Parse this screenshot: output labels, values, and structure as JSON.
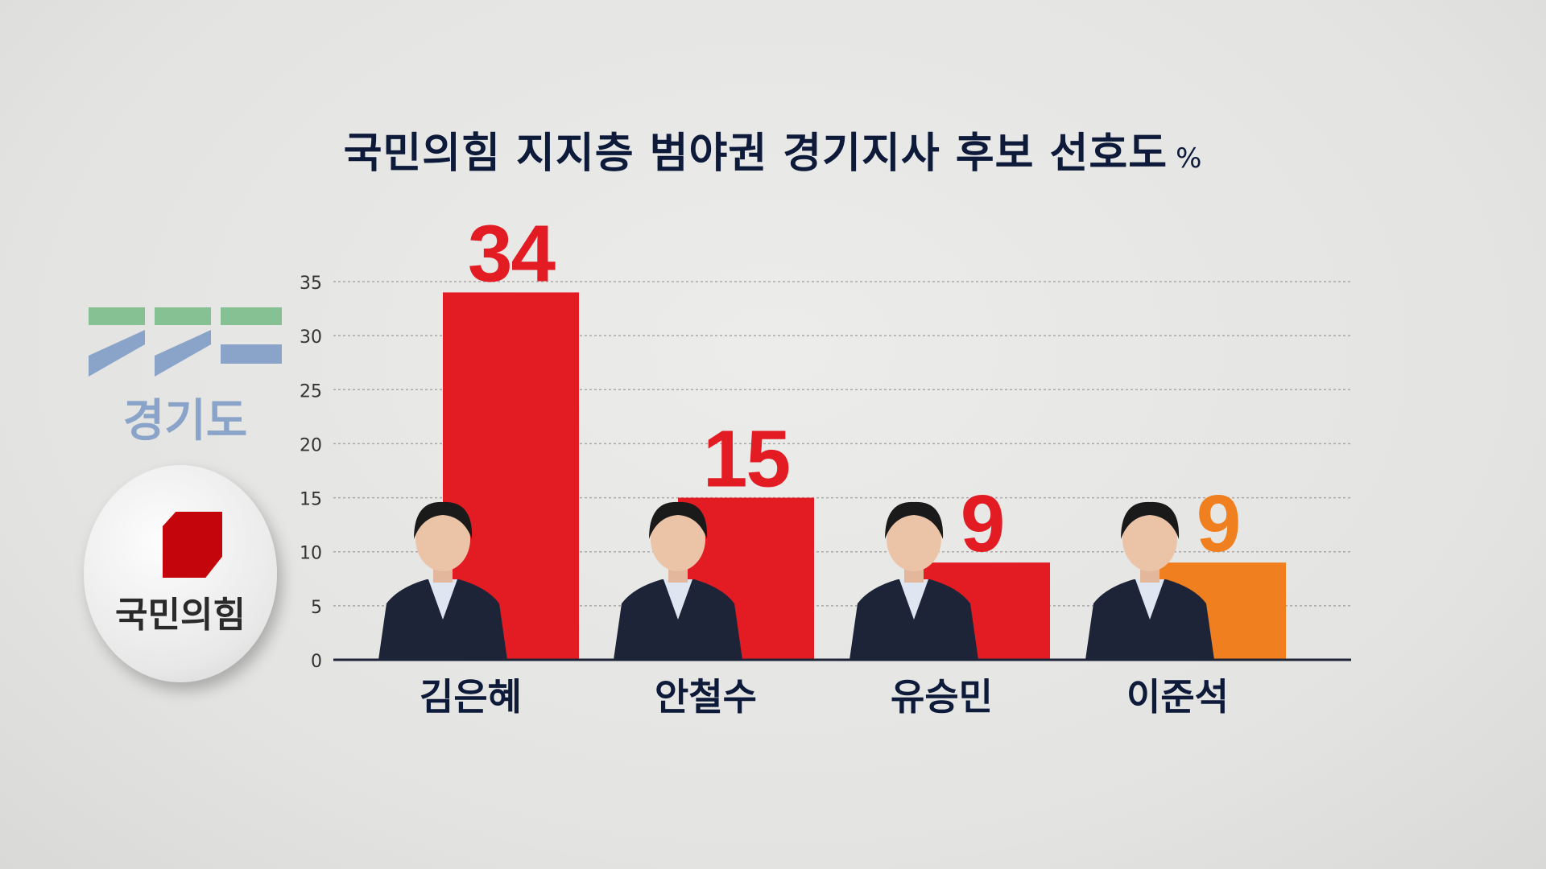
{
  "chart_data": {
    "type": "bar",
    "title": "국민의힘 지지층 범야권 경기지사 후보 선호도",
    "unit": "%",
    "categories": [
      "김은혜",
      "안철수",
      "유승민",
      "이준석"
    ],
    "values": [
      34,
      15,
      9,
      9
    ],
    "data_labels": [
      "34",
      "15",
      "9",
      "9"
    ],
    "colors": [
      "#e31b23",
      "#e31b23",
      "#e31b23",
      "#f07f1f"
    ],
    "ylim": [
      0,
      35
    ],
    "yticks": [
      0,
      5,
      10,
      15,
      20,
      25,
      30,
      35
    ],
    "grid": true
  },
  "logos": {
    "gyeonggi": "경기도",
    "party": "국민의힘"
  }
}
